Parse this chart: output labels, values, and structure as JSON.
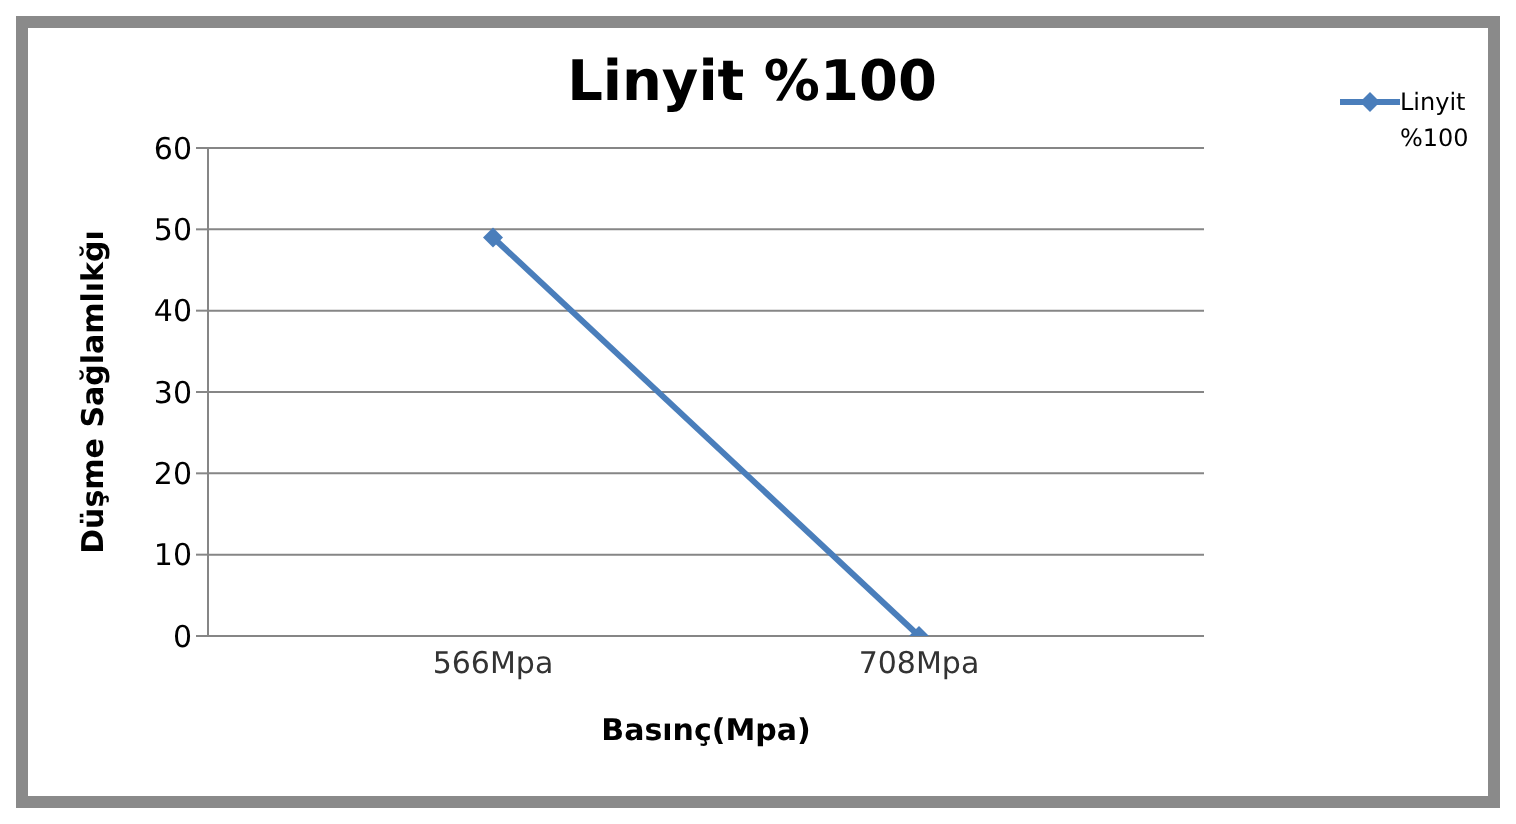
{
  "chart_data": {
    "type": "line",
    "title": "Linyit %100",
    "xlabel": "Basınç(Mpa)",
    "ylabel": "Düşme Sağlamlıkğı",
    "categories": [
      "566Mpa",
      "708Mpa"
    ],
    "series": [
      {
        "name": "Linyit %100",
        "color": "#4a7ebb",
        "values": [
          49,
          0
        ]
      }
    ],
    "ylim": [
      0,
      60
    ],
    "yticks": [
      0,
      10,
      20,
      30,
      40,
      50,
      60
    ],
    "grid": "y",
    "legend": "top right",
    "marker": "diamond",
    "line_style": "solid"
  }
}
